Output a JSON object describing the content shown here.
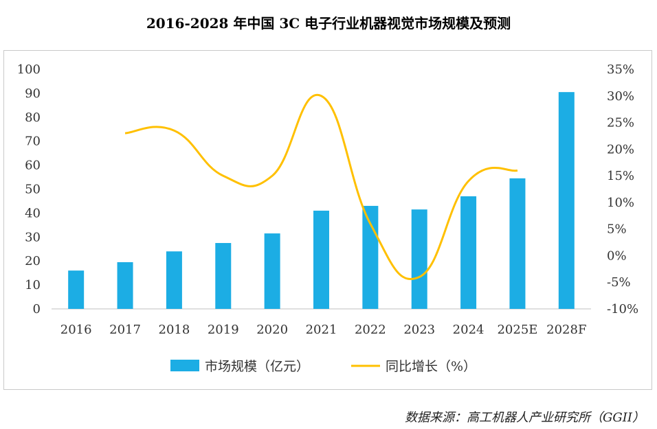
{
  "chart_data": {
    "type": "bar+line",
    "title": "2016-2028 年中国 3C 电子行业机器视觉市场规模及预测",
    "categories": [
      "2016",
      "2017",
      "2018",
      "2019",
      "2020",
      "2021",
      "2022",
      "2023",
      "2024",
      "2025E",
      "2028F"
    ],
    "series": [
      {
        "name": "市场规模（亿元）",
        "type": "bar",
        "axis": "left",
        "color": "#1CADE4",
        "values": [
          16,
          19.5,
          24,
          27.5,
          31.5,
          41,
          43,
          41.5,
          47,
          54.5,
          90.5
        ]
      },
      {
        "name": "同比增长（%）",
        "type": "line",
        "axis": "right",
        "color": "#FFC000",
        "values": [
          null,
          23,
          23.5,
          15,
          15,
          30,
          6,
          -4,
          14,
          16,
          null
        ]
      }
    ],
    "left_axis": {
      "min": 0,
      "max": 100,
      "step": 10,
      "ticks": [
        "0",
        "10",
        "20",
        "30",
        "40",
        "50",
        "60",
        "70",
        "80",
        "90",
        "100"
      ]
    },
    "right_axis": {
      "min": -10,
      "max": 35,
      "step": 5,
      "ticks": [
        "-10%",
        "-5%",
        "0%",
        "5%",
        "10%",
        "15%",
        "20%",
        "25%",
        "30%",
        "35%"
      ]
    },
    "legend_position": "bottom",
    "grid": false
  },
  "source_note": "数据来源：高工机器人产业研究所（GGII）"
}
